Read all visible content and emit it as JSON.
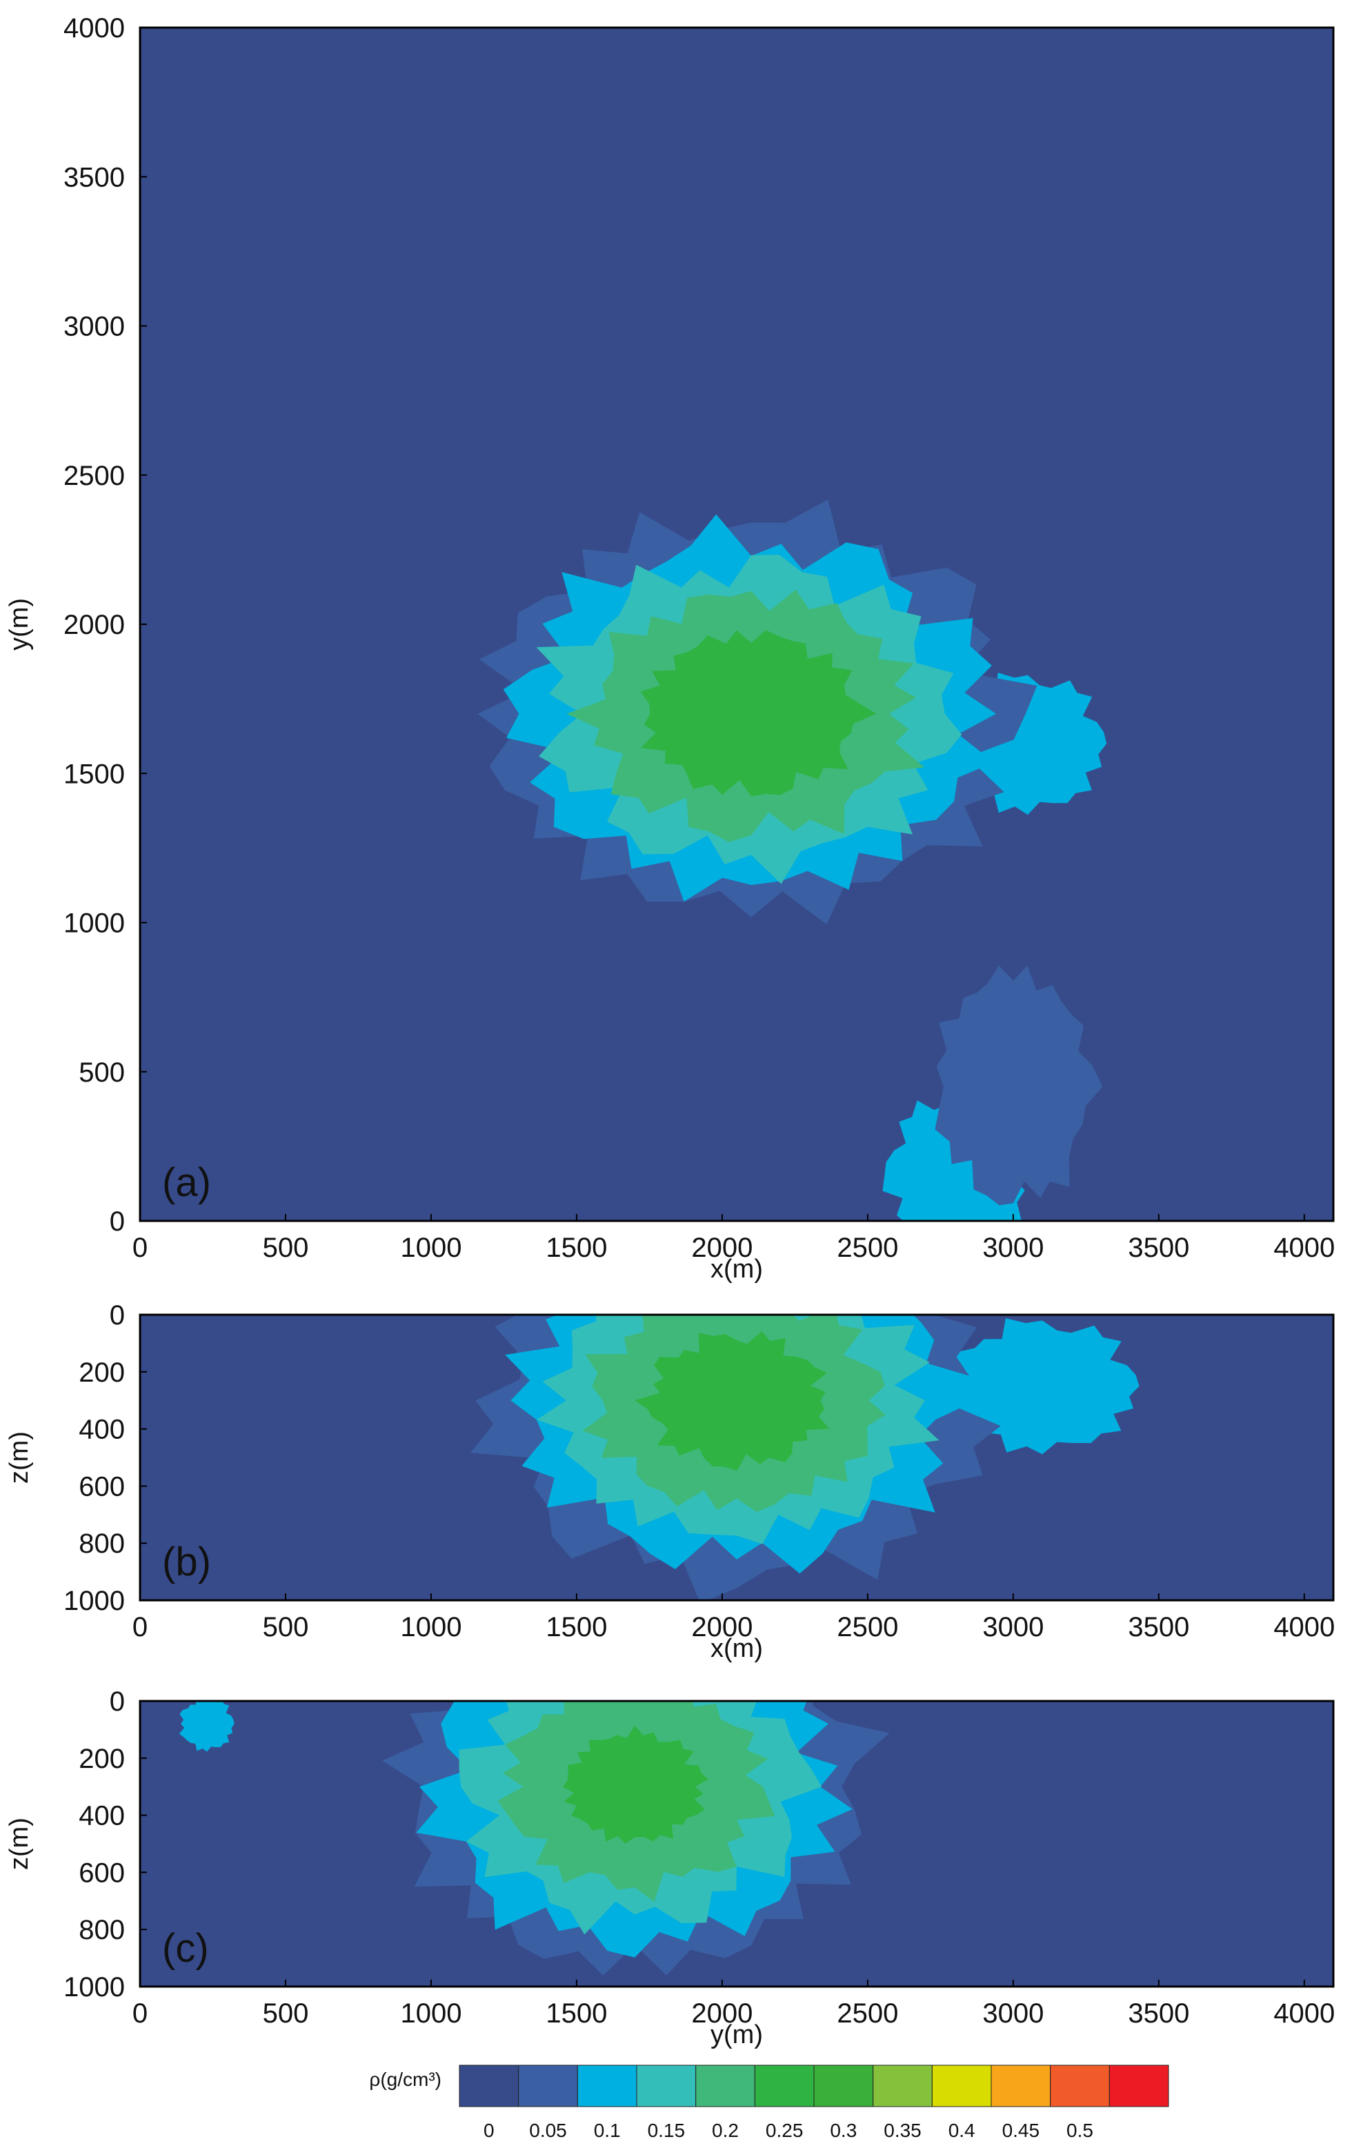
{
  "chart_data": [
    {
      "type": "heatmap",
      "panel_label": "(a)",
      "xlabel": "x(m)",
      "ylabel": "y(m)",
      "xlim": [
        0,
        4100
      ],
      "ylim": [
        0,
        4000
      ],
      "xticks": [
        0,
        500,
        1000,
        1500,
        2000,
        2500,
        3000,
        3500,
        4000
      ],
      "yticks": [
        0,
        500,
        1000,
        1500,
        2000,
        2500,
        3000,
        3500,
        4000
      ],
      "x_descending": false,
      "y_descending": false,
      "anomaly": {
        "cx": 2100,
        "cy": 1700,
        "rx_m": 850,
        "ry_m": 620,
        "peak_density": 0.27
      },
      "extra_blobs": [
        {
          "cx": 3050,
          "cy": 1600,
          "rx": 260,
          "ry": 220,
          "value": 0.12
        },
        {
          "cx": 2800,
          "cy": 150,
          "rx": 230,
          "ry": 260,
          "value": 0.12
        },
        {
          "cx": 3000,
          "cy": 450,
          "rx": 260,
          "ry": 380,
          "value": 0.07
        }
      ],
      "background_density": 0.03
    },
    {
      "type": "heatmap",
      "panel_label": "(b)",
      "xlabel": "x(m)",
      "ylabel": "z(m)",
      "xlim": [
        0,
        4100
      ],
      "ylim": [
        0,
        1000
      ],
      "xticks": [
        0,
        500,
        1000,
        1500,
        2000,
        2500,
        3000,
        3500,
        4000
      ],
      "yticks": [
        0,
        200,
        400,
        600,
        800,
        1000
      ],
      "x_descending": false,
      "y_descending": true,
      "anomaly": {
        "cx": 2050,
        "cy": 300,
        "rx_m": 800,
        "ry_m": 600,
        "peak_density": 0.26
      },
      "extra_blobs": [
        {
          "cx": 3100,
          "cy": 250,
          "rx": 320,
          "ry": 220,
          "value": 0.12
        }
      ],
      "background_density": 0.03
    },
    {
      "type": "heatmap",
      "panel_label": "(c)",
      "xlabel": "y(m)",
      "ylabel": "z(m)",
      "xlim": [
        0,
        4100
      ],
      "ylim": [
        0,
        1000
      ],
      "xticks": [
        0,
        500,
        1000,
        1500,
        2000,
        2500,
        3000,
        3500,
        4000
      ],
      "yticks": [
        0,
        200,
        400,
        600,
        800,
        1000
      ],
      "x_descending": false,
      "y_descending": true,
      "anomaly": {
        "cx": 1700,
        "cy": 300,
        "rx_m": 750,
        "ry_m": 600,
        "peak_density": 0.25
      },
      "extra_blobs": [
        {
          "cx": 230,
          "cy": 80,
          "rx": 90,
          "ry": 90,
          "value": 0.12
        }
      ],
      "background_density": 0.03
    }
  ],
  "colorbar": {
    "label": "ρ(g/cm³)",
    "ticks": [
      "0",
      "0.05",
      "0.1",
      "0.15",
      "0.2",
      "0.25",
      "0.3",
      "0.35",
      "0.4",
      "0.45",
      "0.5"
    ],
    "levels": [
      0,
      0.05,
      0.1,
      0.15,
      0.2,
      0.25,
      0.3,
      0.35,
      0.4,
      0.45,
      0.5
    ],
    "colors": [
      "#374b8b",
      "#3a5fa2",
      "#00b0e0",
      "#34beba",
      "#3fb879",
      "#2fb342",
      "#3aaf3a",
      "#86c13c",
      "#d8dc00",
      "#f9a51a",
      "#f15a29",
      "#ed1c24"
    ]
  }
}
